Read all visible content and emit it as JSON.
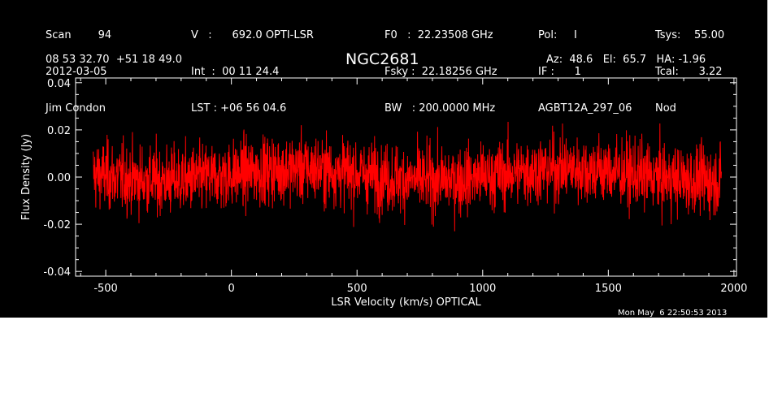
{
  "header": {
    "col1": [
      "Scan        94",
      "2012-03-05",
      "Jim Condon"
    ],
    "col2": [
      "V   :      692.0 OPTI-LSR",
      "Int  :  00 11 24.4",
      "LST : +06 56 04.6"
    ],
    "col3": [
      "F0   :  22.23508 GHz",
      "Fsky :  22.18256 GHz",
      "BW   : 200.0000 MHz"
    ],
    "col4": [
      "Pol:     I",
      "IF :      1",
      "AGBT12A_297_06"
    ],
    "col5": [
      "Tsys:    55.00",
      "Tcal:      3.22",
      "Nod"
    ],
    "coords": "08 53 32.70  +51 18 49.0",
    "object": "NGC2681",
    "azelha": "Az:  48.6   El:  65.7   HA: -1.96",
    "timestamp": "Mon May  6 22:50:53 2013"
  },
  "colors": {
    "background": "#000000",
    "axes": "#ffffff",
    "trace": "#ff0000"
  },
  "chart_data": {
    "type": "line",
    "xlabel": "LSR Velocity (km/s) OPTICAL",
    "ylabel": "Flux Density (Jy)",
    "xlim": [
      -620,
      2010
    ],
    "ylim": [
      -0.042,
      0.042
    ],
    "xticks": [
      "-500",
      "0",
      "500",
      "1000",
      "1500",
      "2000"
    ],
    "xtick_values": [
      -500,
      0,
      500,
      1000,
      1500,
      2000
    ],
    "yticks": [
      "-0.04",
      "-0.02",
      "0.00",
      "0.02",
      "0.04"
    ],
    "ytick_values": [
      -0.04,
      -0.02,
      0.0,
      0.02,
      0.04
    ],
    "series": [
      {
        "color": "#ff0000",
        "x_range": [
          -550,
          1950
        ],
        "mean": 0.001,
        "noise_rms": 0.009,
        "max": 0.03,
        "min": -0.035
      }
    ]
  }
}
